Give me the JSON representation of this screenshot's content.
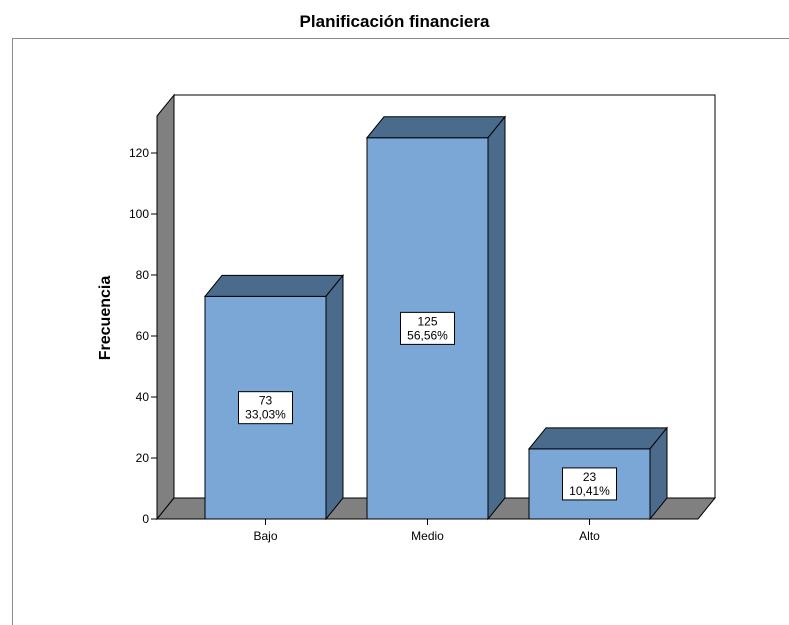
{
  "chart_data": {
    "type": "bar",
    "title": "Planificación financiera",
    "xlabel": "",
    "ylabel": "Frecuencia",
    "categories": [
      "Bajo",
      "Medio",
      "Alto"
    ],
    "values": [
      73,
      125,
      23
    ],
    "labels": [
      {
        "count": "73",
        "percent": "33,03%"
      },
      {
        "count": "125",
        "percent": "56,56%"
      },
      {
        "count": "23",
        "percent": "10,41%"
      }
    ],
    "yticks": [
      0,
      20,
      40,
      60,
      80,
      100,
      120
    ],
    "ylim": [
      0,
      130
    ],
    "grid": false,
    "style": "3d",
    "colors": {
      "bar_front": "#7ba7d7",
      "bar_top": "#4a6b8c",
      "bar_side": "#4a6b8c",
      "floor": "#808080",
      "left_wall": "#808080"
    }
  }
}
